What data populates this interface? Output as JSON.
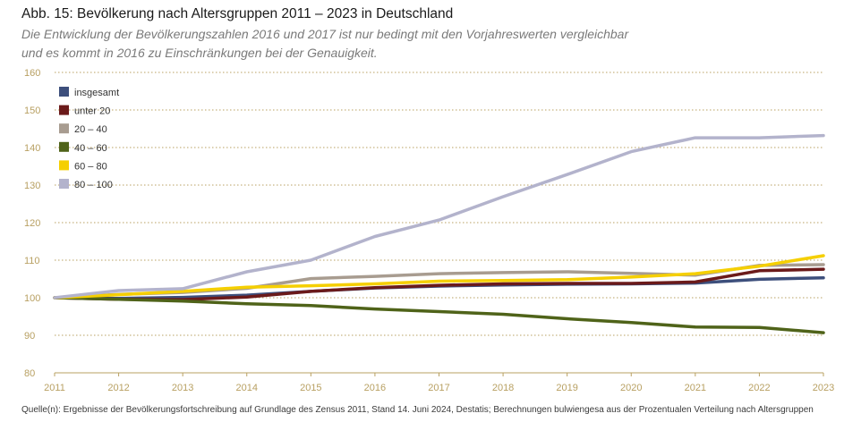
{
  "title": "Abb. 15: Bevölkerung nach Altersgruppen 2011 – 2023 in Deutschland",
  "subtitle": "Die Entwicklung der Bevölkerungszahlen 2016 und 2017 ist nur bedingt mit den Vorjahreswerten vergleichbar und es kommt in 2016 zu Einschränkungen bei der Genauigkeit.",
  "source": "Quelle(n): Ergebnisse der Bevölkerungsfortschreibung auf Grundlage des Zensus 2011, Stand 14. Juni 2024, Destatis; Berechnungen bulwiengesa aus der Prozentualen Verteilung nach Altersgruppen",
  "colors": {
    "axis_text": "#b8a062",
    "grid": "#b8a062"
  },
  "chart_data": {
    "type": "line",
    "x": [
      "2011",
      "2012",
      "2013",
      "2014",
      "2015",
      "2016",
      "2017",
      "2018",
      "2019",
      "2020",
      "2021",
      "2022",
      "2023"
    ],
    "ylim": [
      80,
      160
    ],
    "yticks": [
      "80",
      "90",
      "100",
      "110",
      "120",
      "130",
      "140",
      "150",
      "160"
    ],
    "grid": true,
    "legend_position": "top-left",
    "series": [
      {
        "name": "insgesamt",
        "color": "#3d4f7c",
        "values": [
          100,
          99.8,
          100.1,
          100.7,
          101.7,
          102.6,
          103.1,
          103.4,
          103.6,
          103.7,
          103.9,
          104.9,
          105.3
        ]
      },
      {
        "name": "unter 20",
        "color": "#6b1a1a",
        "values": [
          100,
          99.6,
          99.5,
          100.2,
          101.7,
          102.7,
          103.3,
          103.7,
          103.8,
          103.8,
          104.2,
          107.2,
          107.6
        ]
      },
      {
        "name": "20 – 40",
        "color": "#a89c90",
        "values": [
          100,
          100.9,
          101.4,
          102.5,
          105.1,
          105.7,
          106.4,
          106.7,
          106.9,
          106.5,
          106.0,
          108.6,
          108.8
        ]
      },
      {
        "name": "40 – 60",
        "color": "#4f6319",
        "values": [
          100,
          99.6,
          99.1,
          98.4,
          97.9,
          97.0,
          96.3,
          95.6,
          94.4,
          93.4,
          92.2,
          92.1,
          90.7
        ]
      },
      {
        "name": "60 – 80",
        "color": "#f5cf00",
        "values": [
          100,
          100.8,
          101.7,
          102.8,
          103.2,
          103.7,
          104.4,
          104.6,
          104.8,
          105.5,
          106.4,
          108.4,
          111.2
        ]
      },
      {
        "name": "80 – 100",
        "color": "#b3b3cc",
        "values": [
          100,
          101.9,
          102.4,
          106.9,
          110.0,
          116.3,
          120.7,
          126.9,
          132.8,
          138.9,
          142.6,
          142.6,
          143.2
        ]
      }
    ]
  }
}
